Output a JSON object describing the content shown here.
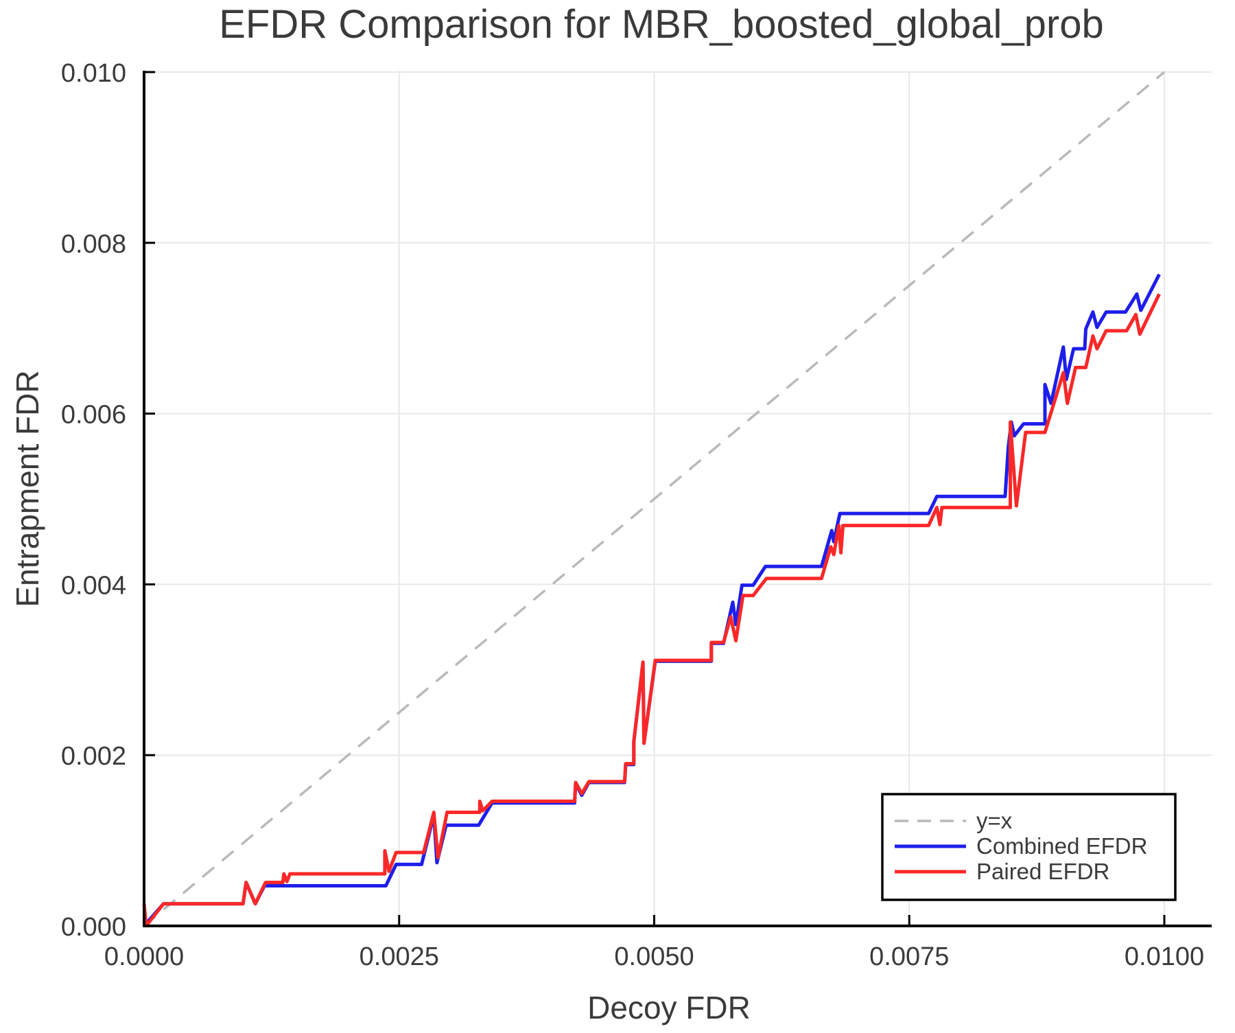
{
  "page": {
    "background": "#ffffff",
    "text_color": "#3a3a3a",
    "spine_color": "#000000",
    "grid_color": "#e8e8e8"
  },
  "chart_data": {
    "type": "line",
    "title": "EFDR Comparison for MBR_boosted_global_prob",
    "xlabel": "Decoy FDR",
    "ylabel": "Entrapment FDR",
    "xlim": [
      0.0,
      0.01046
    ],
    "ylim": [
      0.0,
      0.01002
    ],
    "grid": true,
    "legend_position": "lower right",
    "x_ticks": [
      {
        "value": 0.0,
        "label": "0.0000"
      },
      {
        "value": 0.0025,
        "label": "0.0025"
      },
      {
        "value": 0.005,
        "label": "0.0050"
      },
      {
        "value": 0.0075,
        "label": "0.0075"
      },
      {
        "value": 0.01,
        "label": "0.0100"
      }
    ],
    "y_ticks": [
      {
        "value": 0.0,
        "label": "0.000"
      },
      {
        "value": 0.002,
        "label": "0.002"
      },
      {
        "value": 0.004,
        "label": "0.004"
      },
      {
        "value": 0.006,
        "label": "0.006"
      },
      {
        "value": 0.008,
        "label": "0.008"
      },
      {
        "value": 0.01,
        "label": "0.010"
      }
    ],
    "identity_line": {
      "label": "y=x",
      "color": "#b9b9b9",
      "style": "dashed",
      "from": [
        0.0,
        0.0
      ],
      "to": [
        0.01,
        0.01
      ]
    },
    "series": [
      {
        "name": "Combined EFDR",
        "color": "#1e1eeb",
        "points": [
          [
            0.0,
            0.0
          ],
          [
            0.00019,
            0.00026
          ],
          [
            0.00097,
            0.00026
          ],
          [
            0.001,
            0.00051
          ],
          [
            0.00109,
            0.00026
          ],
          [
            0.00118,
            0.00047
          ],
          [
            0.00237,
            0.00047
          ],
          [
            0.00247,
            0.00072
          ],
          [
            0.00272,
            0.00072
          ],
          [
            0.00284,
            0.0013
          ],
          [
            0.00287,
            0.00074
          ],
          [
            0.00296,
            0.00118
          ],
          [
            0.00328,
            0.00118
          ],
          [
            0.00341,
            0.00144
          ],
          [
            0.00422,
            0.00144
          ],
          [
            0.00423,
            0.00167
          ],
          [
            0.00429,
            0.00153
          ],
          [
            0.00436,
            0.00168
          ],
          [
            0.00471,
            0.00168
          ],
          [
            0.00472,
            0.00189
          ],
          [
            0.0048,
            0.00189
          ],
          [
            0.0048,
            0.00216
          ],
          [
            0.00489,
            0.00308
          ],
          [
            0.0049,
            0.00214
          ],
          [
            0.00501,
            0.0031
          ],
          [
            0.00556,
            0.0031
          ],
          [
            0.00556,
            0.00331
          ],
          [
            0.00568,
            0.00331
          ],
          [
            0.00577,
            0.00379
          ],
          [
            0.0058,
            0.00353
          ],
          [
            0.00586,
            0.00399
          ],
          [
            0.00597,
            0.00399
          ],
          [
            0.00609,
            0.00421
          ],
          [
            0.00664,
            0.00421
          ],
          [
            0.00674,
            0.00463
          ],
          [
            0.00676,
            0.0045
          ],
          [
            0.00682,
            0.00483
          ],
          [
            0.00769,
            0.00483
          ],
          [
            0.00777,
            0.00503
          ],
          [
            0.00844,
            0.00503
          ],
          [
            0.00847,
            0.0056
          ],
          [
            0.0085,
            0.0059
          ],
          [
            0.00853,
            0.00574
          ],
          [
            0.00862,
            0.00588
          ],
          [
            0.00883,
            0.00588
          ],
          [
            0.00883,
            0.00634
          ],
          [
            0.00889,
            0.00612
          ],
          [
            0.00901,
            0.00678
          ],
          [
            0.00904,
            0.0064
          ],
          [
            0.00911,
            0.00676
          ],
          [
            0.00922,
            0.00676
          ],
          [
            0.00923,
            0.00699
          ],
          [
            0.0093,
            0.00719
          ],
          [
            0.00934,
            0.00701
          ],
          [
            0.00943,
            0.00719
          ],
          [
            0.00962,
            0.00719
          ],
          [
            0.00973,
            0.0074
          ],
          [
            0.00977,
            0.00721
          ],
          [
            0.00995,
            0.00763
          ]
        ]
      },
      {
        "name": "Paired EFDR",
        "color": "#fa2828",
        "points": [
          [
            0.0,
            0.00026
          ],
          [
            2e-05,
            0.0
          ],
          [
            0.00019,
            0.00026
          ],
          [
            0.00097,
            0.00026
          ],
          [
            0.001,
            0.00051
          ],
          [
            0.00109,
            0.00026
          ],
          [
            0.00119,
            0.00051
          ],
          [
            0.00136,
            0.00051
          ],
          [
            0.00137,
            0.00061
          ],
          [
            0.0014,
            0.00052
          ],
          [
            0.00143,
            0.00061
          ],
          [
            0.00236,
            0.00061
          ],
          [
            0.00236,
            0.00088
          ],
          [
            0.0024,
            0.00064
          ],
          [
            0.00247,
            0.00086
          ],
          [
            0.00274,
            0.00086
          ],
          [
            0.00284,
            0.00133
          ],
          [
            0.00288,
            0.0008
          ],
          [
            0.00297,
            0.00133
          ],
          [
            0.00329,
            0.00133
          ],
          [
            0.00329,
            0.00146
          ],
          [
            0.00332,
            0.00135
          ],
          [
            0.00341,
            0.00146
          ],
          [
            0.00422,
            0.00146
          ],
          [
            0.00423,
            0.00168
          ],
          [
            0.00429,
            0.00155
          ],
          [
            0.00436,
            0.00169
          ],
          [
            0.00471,
            0.00169
          ],
          [
            0.00472,
            0.0019
          ],
          [
            0.0048,
            0.0019
          ],
          [
            0.0048,
            0.00216
          ],
          [
            0.00489,
            0.00309
          ],
          [
            0.0049,
            0.00214
          ],
          [
            0.00501,
            0.00311
          ],
          [
            0.00556,
            0.00311
          ],
          [
            0.00556,
            0.00332
          ],
          [
            0.00568,
            0.00332
          ],
          [
            0.00575,
            0.00362
          ],
          [
            0.0058,
            0.00334
          ],
          [
            0.00587,
            0.00387
          ],
          [
            0.00597,
            0.00387
          ],
          [
            0.0061,
            0.00407
          ],
          [
            0.00664,
            0.00407
          ],
          [
            0.00673,
            0.00444
          ],
          [
            0.00676,
            0.00435
          ],
          [
            0.00681,
            0.00469
          ],
          [
            0.00683,
            0.00437
          ],
          [
            0.00685,
            0.00469
          ],
          [
            0.00769,
            0.00469
          ],
          [
            0.00777,
            0.0049
          ],
          [
            0.0078,
            0.0047
          ],
          [
            0.00782,
            0.0049
          ],
          [
            0.00849,
            0.0049
          ],
          [
            0.00849,
            0.0059
          ],
          [
            0.00855,
            0.00492
          ],
          [
            0.00864,
            0.00578
          ],
          [
            0.00883,
            0.00578
          ],
          [
            0.00901,
            0.00648
          ],
          [
            0.00905,
            0.00612
          ],
          [
            0.00913,
            0.00654
          ],
          [
            0.00923,
            0.00654
          ],
          [
            0.0093,
            0.00691
          ],
          [
            0.00934,
            0.00676
          ],
          [
            0.00943,
            0.00697
          ],
          [
            0.00963,
            0.00697
          ],
          [
            0.00972,
            0.00716
          ],
          [
            0.00976,
            0.00693
          ],
          [
            0.00995,
            0.0074
          ]
        ]
      }
    ]
  }
}
